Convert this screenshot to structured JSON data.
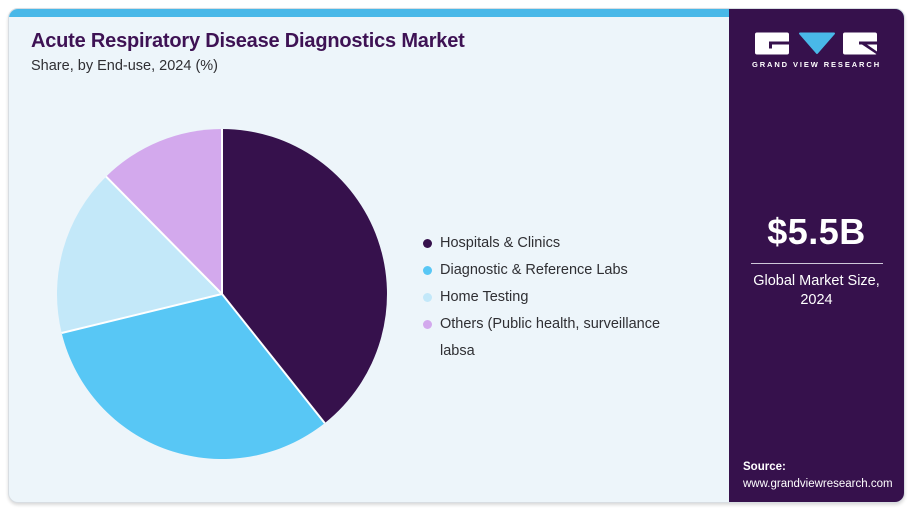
{
  "header": {
    "title": "Acute Respiratory Disease Diagnostics Market",
    "subtitle": "Share, by End-use, 2024 (%)"
  },
  "sidebar": {
    "logo_text": "GRAND VIEW RESEARCH",
    "market_size": "$5.5B",
    "market_size_caption": "Global Market Size, 2024",
    "source_label": "Source:",
    "source_url": "www.grandviewresearch.com",
    "bg_color": "#36114c",
    "accent_color": "#49b8e8"
  },
  "chart_data": {
    "type": "pie",
    "title": "Acute Respiratory Disease Diagnostics Market Share, by End-use, 2024 (%)",
    "labels": [
      "Hospitals & Clinics",
      "Diagnostic & Reference Labs",
      "Home Testing",
      "Others (Public health, surveillance labsa"
    ],
    "values": [
      39.3,
      31.9,
      16.4,
      12.4
    ],
    "unit": "%",
    "colors": [
      "#36114c",
      "#58c7f5",
      "#c3e8f9",
      "#d3a9ed"
    ],
    "start_angle_deg": 0,
    "direction": "clockwise",
    "legend_position": "right",
    "slice_separator_color": "#ffffff"
  }
}
